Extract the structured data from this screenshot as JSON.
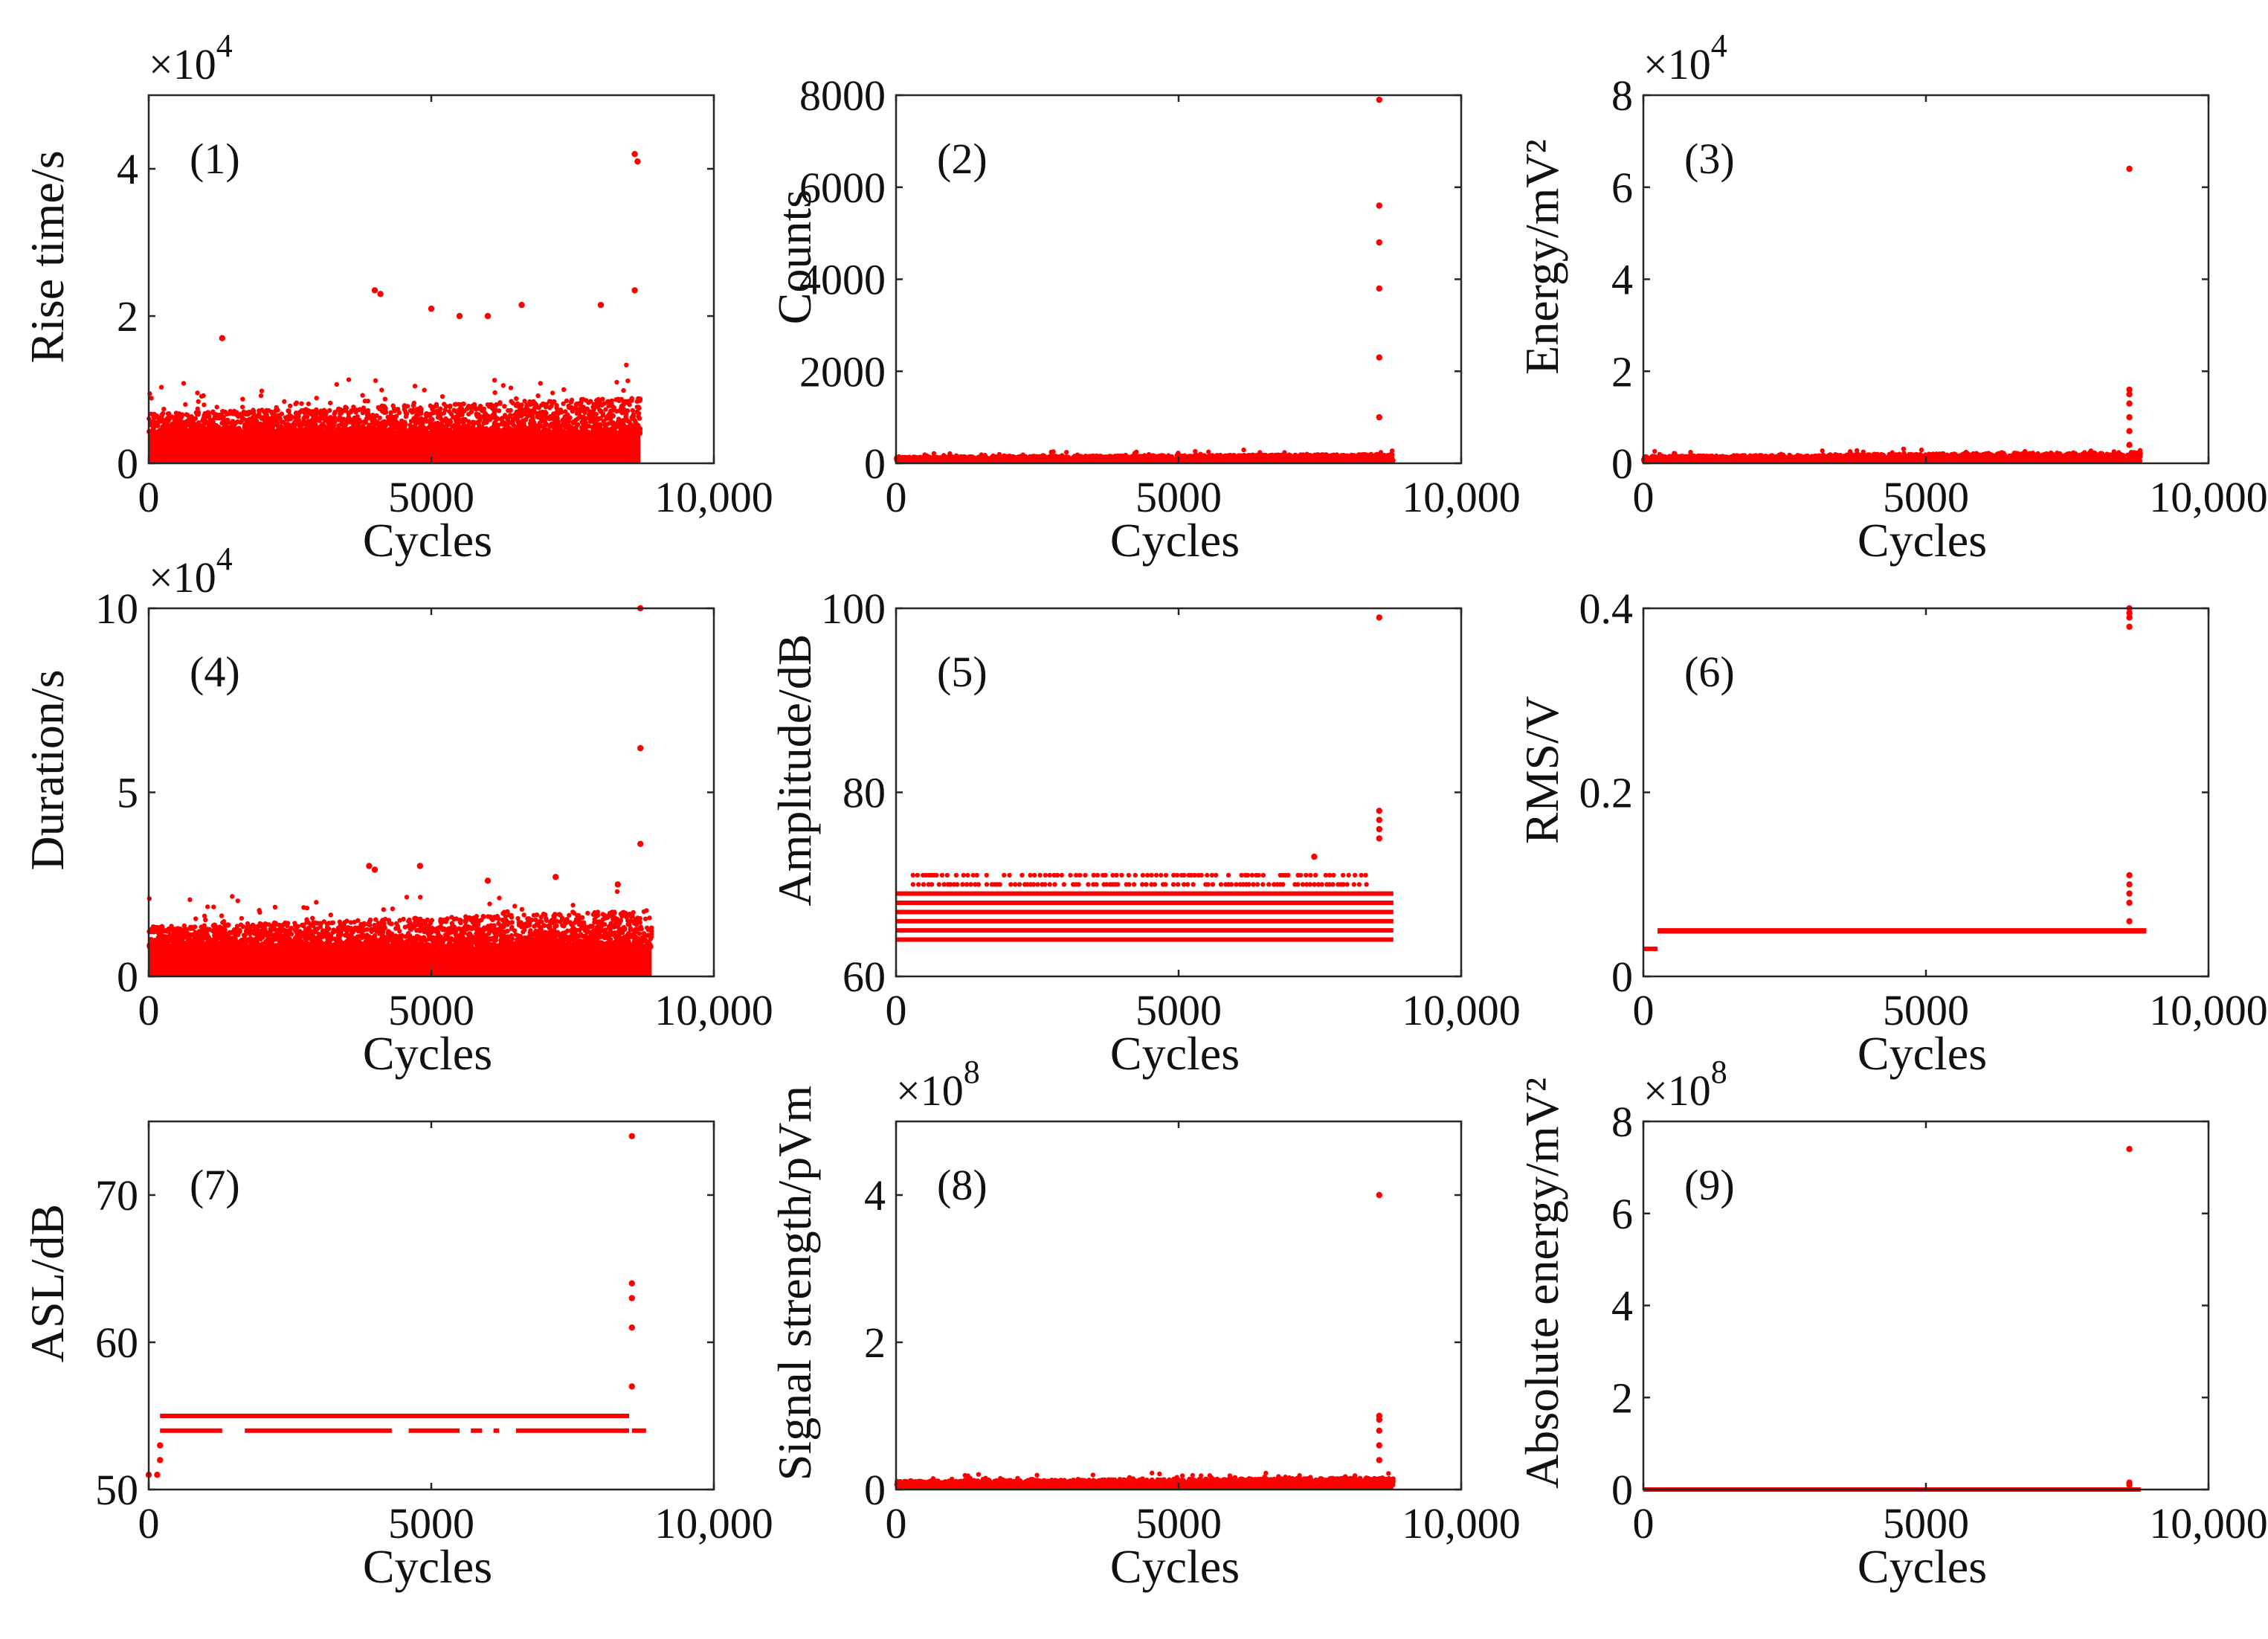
{
  "figure": {
    "point_color": "#ff0000"
  },
  "chart_data": [
    {
      "id": "p1",
      "type": "scatter",
      "title": "(1)",
      "xlabel": "Cycles",
      "ylabel": "Rise time/s",
      "xlim": [
        0,
        10000
      ],
      "ylim": [
        0,
        50000
      ],
      "xticks": [
        0,
        5000,
        10000
      ],
      "xtick_labels": [
        "0",
        "5000",
        "10,000"
      ],
      "yticks": [
        0,
        20000,
        40000
      ],
      "ytick_labels": [
        "0",
        "2",
        "4"
      ],
      "exponent_label": "×10",
      "exponent_power": "4",
      "series": {
        "name": "Rise time",
        "pattern": "dense",
        "x_range": [
          0,
          8700
        ],
        "base": 0,
        "band_top": 4000,
        "cloud_top": 9000,
        "cloud_spread": 5000,
        "outliers": [
          [
            1300,
            17000
          ],
          [
            4000,
            23500
          ],
          [
            4100,
            23000
          ],
          [
            5000,
            21000
          ],
          [
            5500,
            20000
          ],
          [
            6000,
            20000
          ],
          [
            6600,
            21500
          ],
          [
            8000,
            21500
          ],
          [
            8600,
            23500
          ],
          [
            8600,
            42000
          ],
          [
            8650,
            41000
          ]
        ]
      }
    },
    {
      "id": "p2",
      "type": "scatter",
      "title": "(2)",
      "xlabel": "Cycles",
      "ylabel": "Counts",
      "xlim": [
        0,
        10000
      ],
      "ylim": [
        0,
        8000
      ],
      "xticks": [
        0,
        5000,
        10000
      ],
      "xtick_labels": [
        "0",
        "5000",
        "10,000"
      ],
      "yticks": [
        0,
        2000,
        4000,
        6000,
        8000
      ],
      "ytick_labels": [
        "0",
        "2000",
        "4000",
        "6000",
        "8000"
      ],
      "series": {
        "name": "Counts",
        "pattern": "dense",
        "x_range": [
          0,
          8800
        ],
        "base": 0,
        "band_top": 60,
        "cloud_top": 200,
        "cloud_spread": 120,
        "outliers": [
          [
            8550,
            1000
          ],
          [
            8550,
            2300
          ],
          [
            8550,
            3800
          ],
          [
            8550,
            4800
          ],
          [
            8550,
            5600
          ],
          [
            8550,
            7900
          ]
        ]
      }
    },
    {
      "id": "p3",
      "type": "scatter",
      "title": "(3)",
      "xlabel": "Cycles",
      "ylabel": "Energy/mV²",
      "xlim": [
        0,
        10000
      ],
      "ylim": [
        0,
        80000
      ],
      "xticks": [
        0,
        5000,
        10000
      ],
      "xtick_labels": [
        "0",
        "5000",
        "10,000"
      ],
      "yticks": [
        0,
        20000,
        40000,
        60000,
        80000
      ],
      "ytick_labels": [
        "0",
        "2",
        "4",
        "6",
        "8"
      ],
      "exponent_label": "×10",
      "exponent_power": "4",
      "series": {
        "name": "Energy",
        "pattern": "dense",
        "x_range": [
          0,
          8800
        ],
        "base": 0,
        "band_top": 400,
        "cloud_top": 2500,
        "cloud_spread": 1500,
        "outliers": [
          [
            8600,
            4000
          ],
          [
            8600,
            7000
          ],
          [
            8600,
            10000
          ],
          [
            8600,
            13000
          ],
          [
            8600,
            15000
          ],
          [
            8600,
            16000
          ],
          [
            8600,
            64000
          ]
        ]
      }
    },
    {
      "id": "p4",
      "type": "scatter",
      "title": "(4)",
      "xlabel": "Cycles",
      "ylabel": "Duration/s",
      "xlim": [
        0,
        10000
      ],
      "ylim": [
        0,
        100000
      ],
      "xticks": [
        0,
        5000,
        10000
      ],
      "xtick_labels": [
        "0",
        "5000",
        "10,000"
      ],
      "yticks": [
        0,
        50000,
        100000
      ],
      "ytick_labels": [
        "0",
        "5",
        "10"
      ],
      "exponent_label": "×10",
      "exponent_power": "4",
      "series": {
        "name": "Duration",
        "pattern": "dense",
        "x_range": [
          0,
          8900
        ],
        "base": 0,
        "band_top": 8000,
        "cloud_top": 18000,
        "cloud_spread": 10000,
        "outliers": [
          [
            3900,
            30000
          ],
          [
            4000,
            29000
          ],
          [
            4800,
            30000
          ],
          [
            6000,
            26000
          ],
          [
            7200,
            27000
          ],
          [
            8300,
            25000
          ],
          [
            8700,
            36000
          ],
          [
            8700,
            62000
          ],
          [
            8700,
            100000
          ]
        ]
      }
    },
    {
      "id": "p5",
      "type": "scatter",
      "title": "(5)",
      "xlabel": "Cycles",
      "ylabel": "Amplitude/dB",
      "xlim": [
        0,
        10000
      ],
      "ylim": [
        60,
        100
      ],
      "xticks": [
        0,
        5000,
        10000
      ],
      "xtick_labels": [
        "0",
        "5000",
        "10,000"
      ],
      "yticks": [
        60,
        80,
        100
      ],
      "ytick_labels": [
        "60",
        "80",
        "100"
      ],
      "series": {
        "name": "Amplitude",
        "pattern": "levels",
        "levels": [
          64,
          65,
          66,
          67,
          68,
          69
        ],
        "level_range": [
          0,
          8800
        ],
        "sparse_levels": [
          70,
          71
        ],
        "sparse_range": [
          300,
          8400
        ],
        "outliers": [
          [
            7400,
            73
          ],
          [
            8550,
            75
          ],
          [
            8550,
            76
          ],
          [
            8550,
            77
          ],
          [
            8550,
            78
          ],
          [
            8550,
            99
          ]
        ]
      }
    },
    {
      "id": "p6",
      "type": "scatter",
      "title": "(6)",
      "xlabel": "Cycles",
      "ylabel": "RMS/V",
      "xlim": [
        0,
        10000
      ],
      "ylim": [
        0,
        0.4
      ],
      "xticks": [
        0,
        5000,
        10000
      ],
      "xtick_labels": [
        "0",
        "5000",
        "10,000"
      ],
      "yticks": [
        0,
        0.2,
        0.4
      ],
      "ytick_labels": [
        "0",
        "0.2",
        "0.4"
      ],
      "series": {
        "name": "RMS",
        "pattern": "levels",
        "levels": [
          0.049,
          0.05
        ],
        "level_range": [
          250,
          8900
        ],
        "start_segment": [
          [
            0,
            0.03
          ],
          [
            250,
            0.03
          ]
        ],
        "outliers": [
          [
            8600,
            0.06
          ],
          [
            8600,
            0.08
          ],
          [
            8600,
            0.09
          ],
          [
            8600,
            0.1
          ],
          [
            8600,
            0.11
          ],
          [
            8600,
            0.38
          ],
          [
            8600,
            0.39
          ],
          [
            8600,
            0.395
          ],
          [
            8600,
            0.4
          ]
        ]
      }
    },
    {
      "id": "p7",
      "type": "scatter",
      "title": "(7)",
      "xlabel": "Cycles",
      "ylabel": "ASL/dB",
      "xlim": [
        0,
        10000
      ],
      "ylim": [
        50,
        75
      ],
      "xticks": [
        0,
        5000,
        10000
      ],
      "xtick_labels": [
        "0",
        "5000",
        "10,000"
      ],
      "yticks": [
        50,
        60,
        70
      ],
      "ytick_labels": [
        "50",
        "60",
        "70"
      ],
      "series": {
        "name": "ASL",
        "pattern": "levels",
        "levels": [
          55
        ],
        "level_range": [
          200,
          8500
        ],
        "gapped_level": 54,
        "gapped_range": [
          200,
          8800
        ],
        "gaps": [
          [
            1300,
            1700
          ],
          [
            4300,
            4600
          ],
          [
            5500,
            5700
          ],
          [
            5900,
            6100
          ],
          [
            6200,
            6500
          ],
          [
            8500,
            8550
          ]
        ],
        "outliers": [
          [
            0,
            51
          ],
          [
            150,
            51
          ],
          [
            200,
            52
          ],
          [
            200,
            53
          ],
          [
            8550,
            57
          ],
          [
            8550,
            61
          ],
          [
            8550,
            63
          ],
          [
            8550,
            64
          ],
          [
            8550,
            74
          ]
        ]
      }
    },
    {
      "id": "p8",
      "type": "scatter",
      "title": "(8)",
      "xlabel": "Cycles",
      "ylabel": "Signal strength/pVm",
      "xlim": [
        0,
        10000
      ],
      "ylim": [
        0,
        500000000
      ],
      "xticks": [
        0,
        5000,
        10000
      ],
      "xtick_labels": [
        "0",
        "5000",
        "10,000"
      ],
      "yticks": [
        0,
        200000000,
        400000000
      ],
      "ytick_labels": [
        "0",
        "2",
        "4"
      ],
      "exponent_label": "×10",
      "exponent_power": "8",
      "series": {
        "name": "Signal strength",
        "pattern": "dense",
        "x_range": [
          0,
          8800
        ],
        "base": 0,
        "band_top": 6000000,
        "cloud_top": 16000000,
        "cloud_spread": 10000000,
        "outliers": [
          [
            8550,
            40000000
          ],
          [
            8550,
            60000000
          ],
          [
            8550,
            80000000
          ],
          [
            8550,
            95000000
          ],
          [
            8550,
            100000000
          ],
          [
            8550,
            400000000
          ]
        ]
      }
    },
    {
      "id": "p9",
      "type": "scatter",
      "title": "(9)",
      "xlabel": "Cycles",
      "ylabel": "Absolute energy/mV²",
      "xlim": [
        0,
        10000
      ],
      "ylim": [
        0,
        800000000
      ],
      "xticks": [
        0,
        5000,
        10000
      ],
      "xtick_labels": [
        "0",
        "5000",
        "10,000"
      ],
      "yticks": [
        0,
        200000000,
        400000000,
        600000000,
        800000000
      ],
      "ytick_labels": [
        "0",
        "2",
        "4",
        "6",
        "8"
      ],
      "exponent_label": "×10",
      "exponent_power": "8",
      "series": {
        "name": "Absolute energy",
        "pattern": "levels",
        "levels": [
          0
        ],
        "level_range": [
          0,
          8800
        ],
        "outliers": [
          [
            8600,
            10000000
          ],
          [
            8600,
            15000000
          ],
          [
            8600,
            740000000
          ]
        ]
      }
    }
  ]
}
